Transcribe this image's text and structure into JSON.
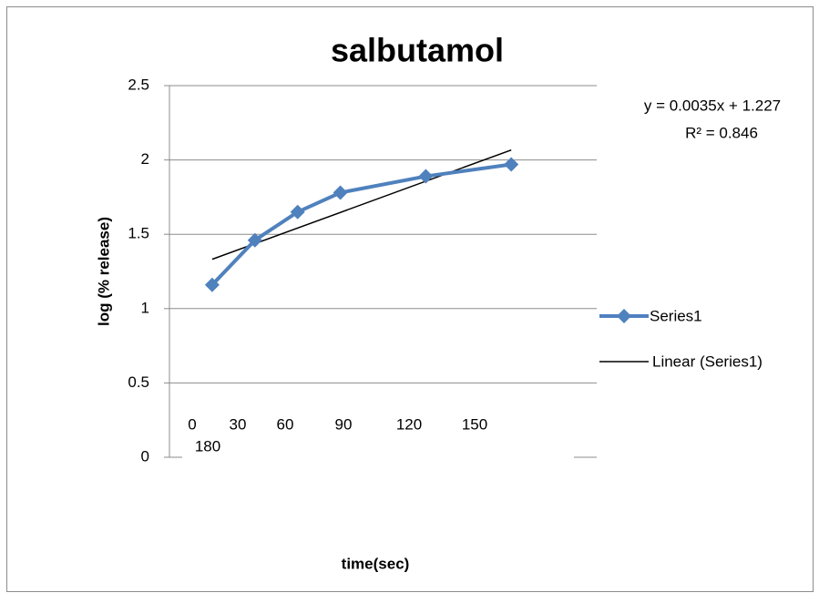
{
  "chart_data": {
    "type": "scatter",
    "title": "salbutamol",
    "x_label": "time(sec)",
    "y_label": "log (% release)",
    "x_axis_text": [
      "0",
      "30",
      "60",
      "90",
      "120",
      "150",
      "180"
    ],
    "xlim": [
      0,
      300
    ],
    "ylim": [
      0,
      2.5
    ],
    "yticks": [
      0,
      0.5,
      1,
      1.5,
      2,
      2.5
    ],
    "grid": true,
    "legend": "right",
    "x": [
      30,
      60,
      90,
      120,
      180,
      240
    ],
    "series": [
      {
        "name": "Series1",
        "color": "#4f81bd",
        "values": [
          1.16,
          1.46,
          1.65,
          1.78,
          1.89,
          1.97
        ]
      }
    ],
    "trendline": {
      "name": "Linear (Series1)",
      "color": "#000000",
      "slope": 0.0035,
      "intercept": 1.227,
      "equation": "y = 0.0035x + 1.227",
      "r_squared_label": "R² = 0.846"
    }
  }
}
